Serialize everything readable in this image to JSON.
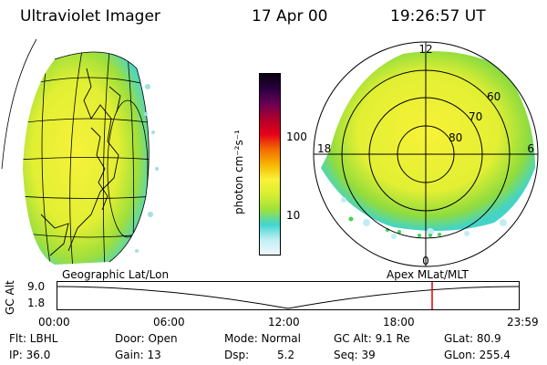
{
  "header": {
    "title": "Ultraviolet Imager",
    "date": "17 Apr 00",
    "time": "19:26:57 UT"
  },
  "colorbar": {
    "unit_label": "photon cm⁻²s⁻¹",
    "ticks": [
      "100",
      "10"
    ],
    "colors": [
      "#f0f8ff",
      "#bfeef2",
      "#3fd6d0",
      "#9fe03a",
      "#d8ee30",
      "#f8f238",
      "#f7b400",
      "#f36a00",
      "#e5001a",
      "#b0002a",
      "#6b0055",
      "#2a0040",
      "#0a0010"
    ]
  },
  "polar": {
    "mlt_labels": {
      "top": "12",
      "left": "18",
      "right": "6",
      "bottom": "0"
    },
    "mlat_labels": [
      "60",
      "70",
      "80"
    ]
  },
  "panel_labels": {
    "left": "Geographic Lat/Lon",
    "right": "Apex MLat/MLT"
  },
  "altitude_plot": {
    "axis_label": "GC Alt",
    "y_ticks": [
      "9.0",
      "1.8"
    ],
    "x_ticks": [
      "00:00",
      "06:00",
      "12:00",
      "18:00",
      "23:59"
    ],
    "current_time_fraction": 0.811
  },
  "info": {
    "flt": "Flt: LBHL",
    "ip": "IP: 36.0",
    "door": "Door: Open",
    "gain": "Gain: 13",
    "mode": "Mode: Normal",
    "dsp_label": "Dsp:",
    "dsp_value": "5.2",
    "gcalt": "GC Alt: 9.1 Re",
    "seq": "Seq: 39",
    "glat": "GLat: 80.9",
    "glon": "GLon: 255.4"
  }
}
